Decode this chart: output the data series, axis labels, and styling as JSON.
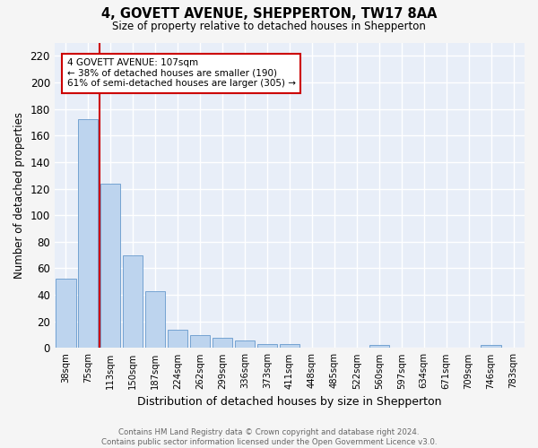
{
  "title": "4, GOVETT AVENUE, SHEPPERTON, TW17 8AA",
  "subtitle": "Size of property relative to detached houses in Shepperton",
  "xlabel": "Distribution of detached houses by size in Shepperton",
  "ylabel": "Number of detached properties",
  "categories": [
    "38sqm",
    "75sqm",
    "113sqm",
    "150sqm",
    "187sqm",
    "224sqm",
    "262sqm",
    "299sqm",
    "336sqm",
    "373sqm",
    "411sqm",
    "448sqm",
    "485sqm",
    "522sqm",
    "560sqm",
    "597sqm",
    "634sqm",
    "671sqm",
    "709sqm",
    "746sqm",
    "783sqm"
  ],
  "values": [
    52,
    172,
    124,
    70,
    43,
    14,
    10,
    8,
    6,
    3,
    3,
    0,
    0,
    0,
    2,
    0,
    0,
    0,
    0,
    2,
    0
  ],
  "bar_color": "#bdd4ee",
  "bar_edge_color": "#6699cc",
  "marker_label": "4 GOVETT AVENUE: 107sqm",
  "marker_color": "#cc0000",
  "annotation_line1": "← 38% of detached houses are smaller (190)",
  "annotation_line2": "61% of semi-detached houses are larger (305) →",
  "ylim": [
    0,
    230
  ],
  "yticks": [
    0,
    20,
    40,
    60,
    80,
    100,
    120,
    140,
    160,
    180,
    200,
    220
  ],
  "background_color": "#e8eef8",
  "grid_color": "#ffffff",
  "fig_bg_color": "#f5f5f5",
  "footer_line1": "Contains HM Land Registry data © Crown copyright and database right 2024.",
  "footer_line2": "Contains public sector information licensed under the Open Government Licence v3.0."
}
